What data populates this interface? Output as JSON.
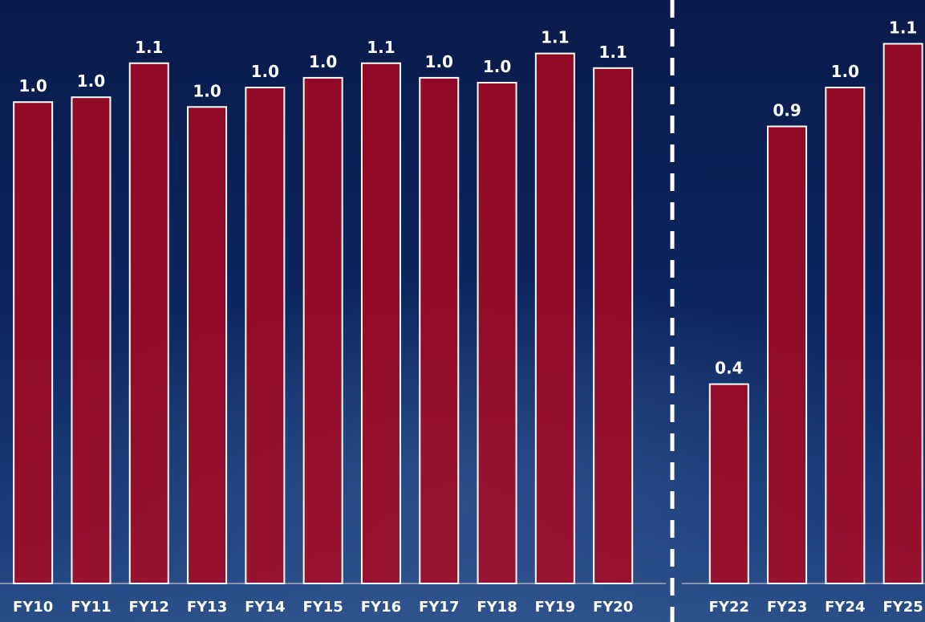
{
  "chart_data": {
    "type": "bar",
    "categories": [
      "FY10",
      "FY11",
      "FY12",
      "FY13",
      "FY14",
      "FY15",
      "FY16",
      "FY17",
      "FY18",
      "FY19",
      "FY20",
      null,
      "FY22",
      "FY23",
      "FY24",
      "FY25"
    ],
    "values": [
      0.99,
      1.0,
      1.07,
      0.98,
      1.02,
      1.04,
      1.07,
      1.04,
      1.03,
      1.09,
      1.06,
      null,
      0.41,
      0.94,
      1.02,
      1.11
    ],
    "value_labels": [
      "1.0",
      "1.0",
      "1.1",
      "1.0",
      "1.0",
      "1.0",
      "1.1",
      "1.0",
      "1.0",
      "1.1",
      "1.1",
      null,
      "0.4",
      "0.9",
      "1.0",
      "1.1"
    ],
    "color": "#b0061c",
    "ylim": [
      0,
      1.2
    ]
  }
}
